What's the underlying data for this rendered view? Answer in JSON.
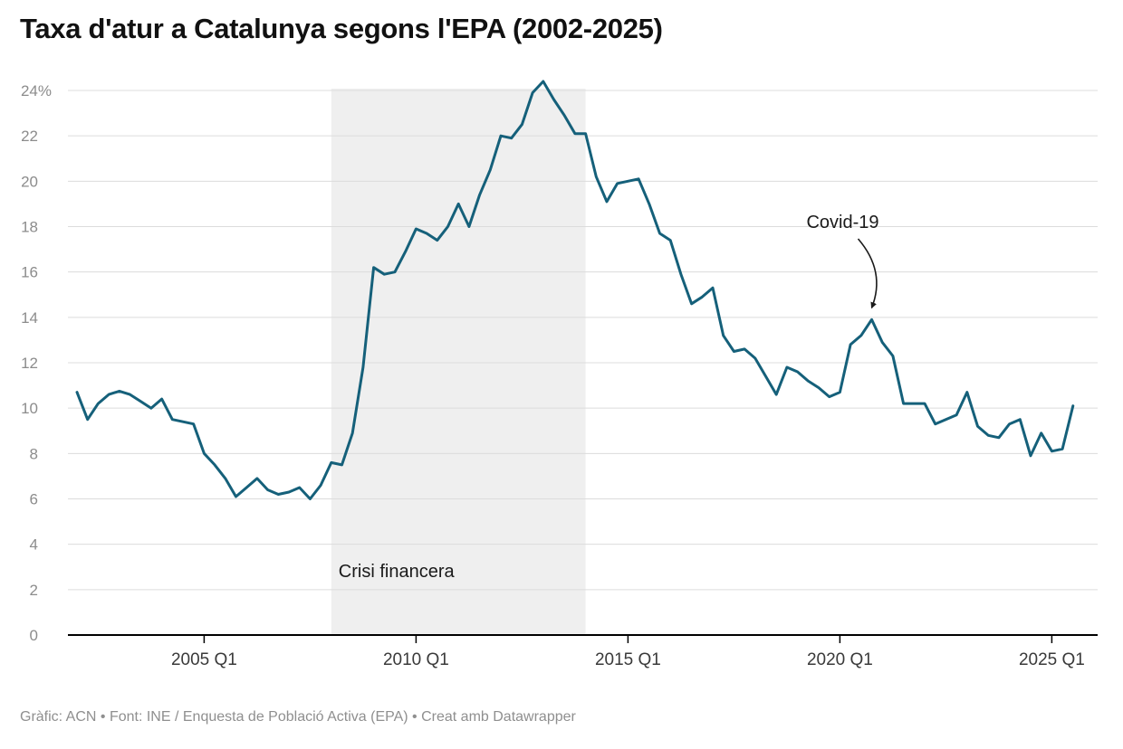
{
  "header": {
    "title": "Taxa d'atur a Catalunya segons l'EPA (2002-2025)"
  },
  "footer": {
    "credit": "Gràfic: ACN • Font: INE / Enquesta de Població Activa (EPA) • Creat amb Datawrapper"
  },
  "colors": {
    "line": "#15607a",
    "shade": "#efefef",
    "grid": "#dcdcdc",
    "baseline": "#000000",
    "y_label": "#8c8c8c",
    "x_label": "#3a3a3a",
    "annotation": "#1a1a1a"
  },
  "chart_data": {
    "type": "line",
    "title": "Taxa d'atur a Catalunya segons l'EPA (2002-2025)",
    "unit": "%",
    "ylim": [
      0,
      24
    ],
    "y_ticks": [
      0,
      2,
      4,
      6,
      8,
      10,
      12,
      14,
      16,
      18,
      20,
      22,
      24
    ],
    "y_top_label": "24%",
    "x_ticks": [
      "2005 Q1",
      "2010 Q1",
      "2015 Q1",
      "2020 Q1",
      "2025 Q1"
    ],
    "x_start": "2002 Q1",
    "frequency": "quarterly",
    "grid": true,
    "legend": "none",
    "series": [
      {
        "name": "Taxa d'atur",
        "values": [
          10.7,
          9.5,
          10.2,
          10.6,
          10.75,
          10.6,
          10.3,
          10.0,
          10.4,
          9.5,
          9.4,
          9.3,
          8.0,
          7.5,
          6.9,
          6.1,
          6.5,
          6.9,
          6.4,
          6.2,
          6.3,
          6.5,
          6.0,
          6.6,
          7.6,
          7.5,
          8.9,
          11.8,
          16.2,
          15.9,
          16.0,
          16.9,
          17.9,
          17.7,
          17.4,
          18.0,
          19.0,
          18.0,
          19.4,
          20.5,
          22.0,
          21.9,
          22.5,
          23.9,
          24.4,
          23.6,
          22.9,
          22.1,
          22.1,
          20.2,
          19.1,
          19.9,
          20.0,
          20.1,
          19.0,
          17.7,
          17.4,
          15.9,
          14.6,
          14.9,
          15.3,
          13.2,
          12.5,
          12.6,
          12.2,
          11.4,
          10.6,
          11.8,
          11.6,
          11.2,
          10.9,
          10.5,
          10.7,
          12.8,
          13.2,
          13.9,
          12.9,
          12.3,
          10.2,
          10.2,
          10.2,
          9.3,
          9.5,
          9.7,
          10.7,
          9.2,
          8.8,
          8.7,
          9.3,
          9.5,
          7.9,
          8.9,
          8.1,
          8.2,
          10.1
        ]
      }
    ],
    "shaded_region": {
      "from": "2008 Q1",
      "to": "2014 Q1",
      "label": "Crisi financera"
    },
    "annotation": {
      "label": "Covid-19",
      "points_to": "2020 Q4",
      "value": 13.9
    }
  }
}
